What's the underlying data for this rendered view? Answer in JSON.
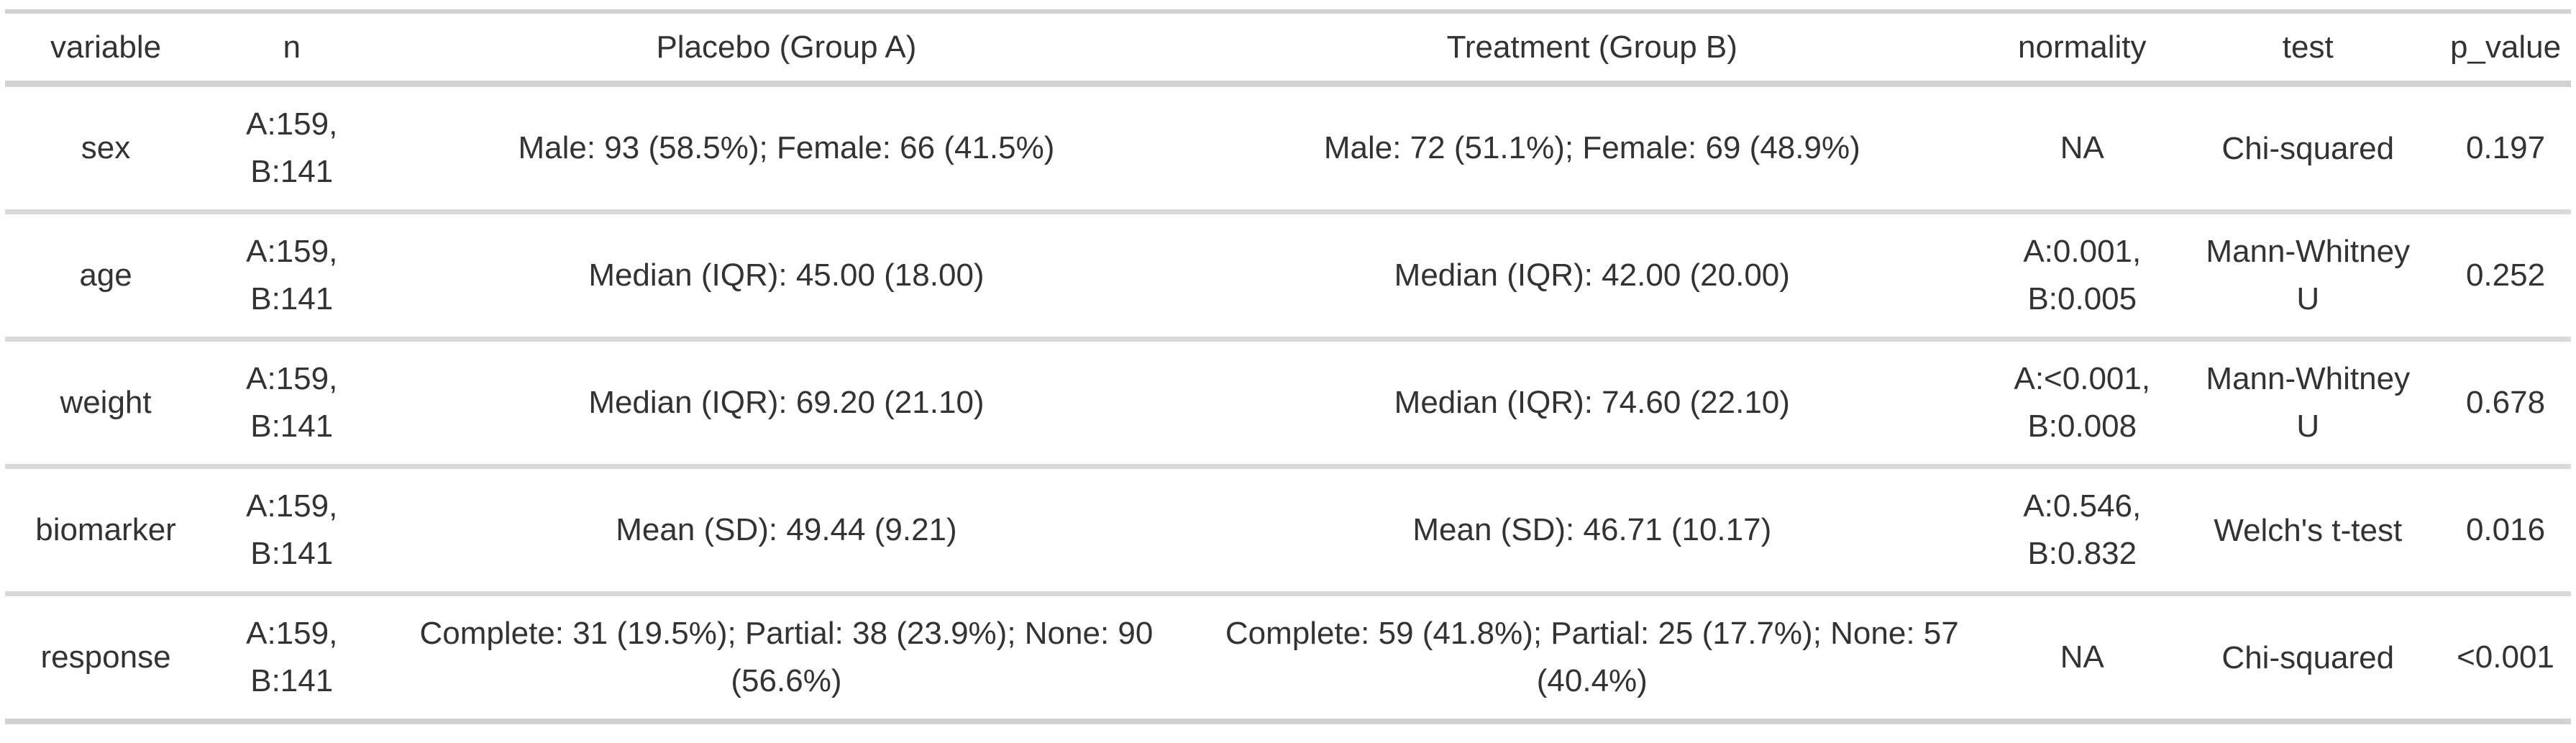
{
  "chart_data": {
    "type": "table",
    "columns": [
      {
        "key": "variable",
        "label": "variable"
      },
      {
        "key": "n",
        "label": "n"
      },
      {
        "key": "placebo",
        "label": "Placebo (Group A)"
      },
      {
        "key": "treatment",
        "label": "Treatment (Group B)"
      },
      {
        "key": "normality",
        "label": "normality"
      },
      {
        "key": "test",
        "label": "test"
      },
      {
        "key": "p_value",
        "label": "p_value"
      }
    ],
    "rows": [
      {
        "variable": "sex",
        "n": "A:159, B:141",
        "placebo": "Male: 93 (58.5%); Female: 66 (41.5%)",
        "treatment": "Male: 72 (51.1%); Female: 69 (48.9%)",
        "normality": "NA",
        "test": "Chi-squared",
        "p_value": "0.197"
      },
      {
        "variable": "age",
        "n": "A:159, B:141",
        "placebo": "Median (IQR): 45.00 (18.00)",
        "treatment": "Median (IQR): 42.00 (20.00)",
        "normality": "A:0.001, B:0.005",
        "test": "Mann-Whitney U",
        "p_value": "0.252"
      },
      {
        "variable": "weight",
        "n": "A:159, B:141",
        "placebo": "Median (IQR): 69.20 (21.10)",
        "treatment": "Median (IQR): 74.60 (22.10)",
        "normality": "A:<0.001, B:0.008",
        "test": "Mann-Whitney U",
        "p_value": "0.678"
      },
      {
        "variable": "biomarker",
        "n": "A:159, B:141",
        "placebo": "Mean (SD): 49.44 (9.21)",
        "treatment": "Mean (SD): 46.71 (10.17)",
        "normality": "A:0.546, B:0.832",
        "test": "Welch's t-test",
        "p_value": "0.016"
      },
      {
        "variable": "response",
        "n": "A:159, B:141",
        "placebo": "Complete: 31 (19.5%); Partial: 38 (23.9%); None: 90 (56.6%)",
        "treatment": "Complete: 59 (41.8%); Partial: 25 (17.7%); None: 57 (40.4%)",
        "normality": "NA",
        "test": "Chi-squared",
        "p_value": "<0.001"
      }
    ]
  },
  "colors": {
    "text": "#333333",
    "border": "#d2d2d2",
    "row_separator": "#dadada",
    "background": "#ffffff"
  }
}
